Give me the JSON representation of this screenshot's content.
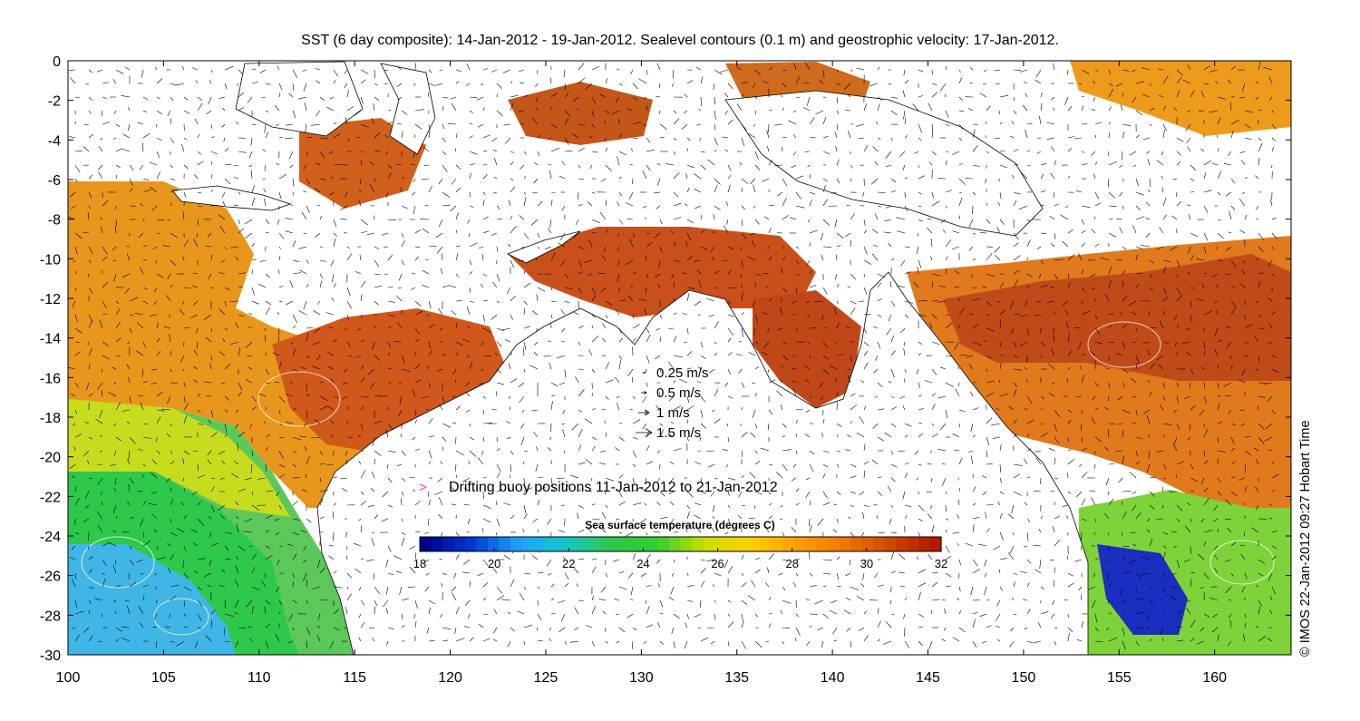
{
  "title": "SST (6 day composite): 14-Jan-2012 - 19-Jan-2012. Sealevel contours (0.1 m) and geostrophic velocity: 17-Jan-2012.",
  "credit": "© IMOS 22-Jan-2012 09:27 Hobart Time",
  "chart_data": {
    "type": "heatmap",
    "x_ticks": [
      100,
      105,
      110,
      115,
      120,
      125,
      130,
      135,
      140,
      145,
      150,
      155,
      160
    ],
    "y_ticks": [
      0,
      -2,
      -4,
      -6,
      -8,
      -10,
      -12,
      -14,
      -16,
      -18,
      -20,
      -22,
      -24,
      -26,
      -28,
      -30
    ],
    "xlim": [
      100,
      164
    ],
    "ylim": [
      -30,
      0
    ],
    "grid": false,
    "sst_field": "sea surface temperature, degrees C",
    "colorbar": {
      "label": "Sea surface temperature (degrees C)",
      "ticks": [
        18,
        20,
        22,
        24,
        26,
        28,
        30,
        32
      ],
      "range": [
        18,
        32
      ],
      "colors": [
        "#00008b",
        "#0038d0",
        "#1ea0ff",
        "#12c8c8",
        "#2ec84a",
        "#32cd32",
        "#c8e000",
        "#ffd000",
        "#ffa000",
        "#f07800",
        "#d04800",
        "#b01800"
      ]
    },
    "velocity_legend": [
      {
        "speed": 0.25,
        "label": "0.25 m/s"
      },
      {
        "speed": 0.5,
        "label": "0.5 m/s"
      },
      {
        "speed": 1,
        "label": "1 m/s"
      },
      {
        "speed": 1.5,
        "label": "1.5 m/s"
      }
    ],
    "buoy_legend": {
      "marker": ">",
      "color": "#ff33cc",
      "label": "Drifting buoy positions 11-Jan-2012 to 21-Jan-2012"
    }
  }
}
